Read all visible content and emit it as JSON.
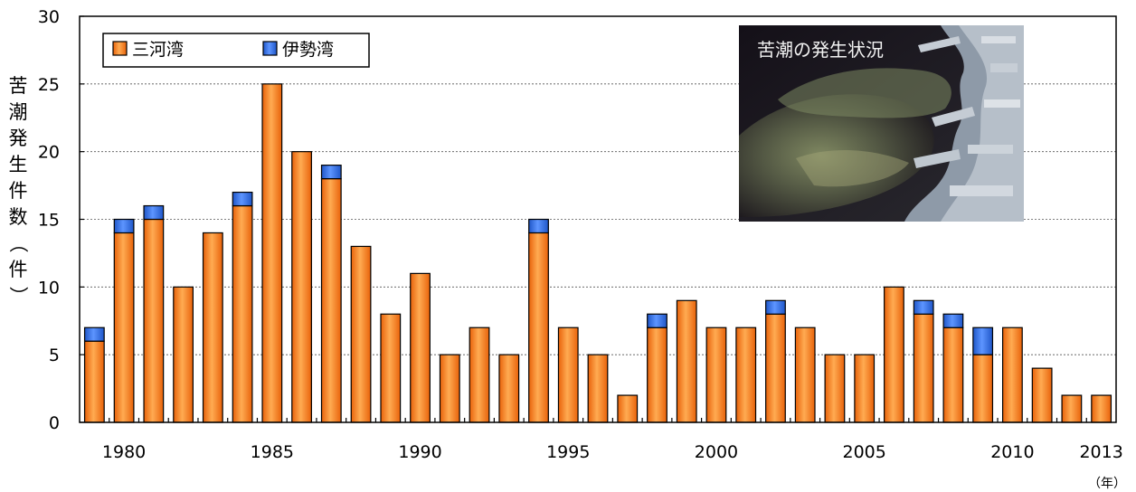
{
  "chart_data": {
    "type": "bar",
    "stacked": true,
    "x": [
      1979,
      1980,
      1981,
      1982,
      1983,
      1984,
      1985,
      1986,
      1987,
      1988,
      1989,
      1990,
      1991,
      1992,
      1993,
      1994,
      1995,
      1996,
      1997,
      1998,
      1999,
      2000,
      2001,
      2002,
      2003,
      2004,
      2005,
      2006,
      2007,
      2008,
      2009,
      2010,
      2011,
      2012,
      2013
    ],
    "x_tick_labels": [
      {
        "year": 1980,
        "label": "1980"
      },
      {
        "year": 1985,
        "label": "1985"
      },
      {
        "year": 1990,
        "label": "1990"
      },
      {
        "year": 1995,
        "label": "1995"
      },
      {
        "year": 2000,
        "label": "2000"
      },
      {
        "year": 2005,
        "label": "2005"
      },
      {
        "year": 2010,
        "label": "2010"
      },
      {
        "year": 2013,
        "label": "2013"
      }
    ],
    "series": [
      {
        "name": "三河湾",
        "color": "#f07d1e",
        "values": [
          6,
          14,
          15,
          10,
          14,
          16,
          25,
          20,
          18,
          13,
          8,
          11,
          5,
          7,
          5,
          14,
          7,
          5,
          2,
          7,
          9,
          7,
          7,
          8,
          7,
          5,
          5,
          10,
          8,
          7,
          5,
          7,
          4,
          2,
          2
        ]
      },
      {
        "name": "伊勢湾",
        "color": "#2f6fe0",
        "values": [
          1,
          1,
          1,
          0,
          0,
          1,
          0,
          0,
          1,
          0,
          0,
          0,
          0,
          0,
          0,
          1,
          0,
          0,
          0,
          1,
          0,
          0,
          0,
          1,
          0,
          0,
          0,
          0,
          1,
          1,
          2,
          0,
          0,
          0,
          0
        ]
      }
    ],
    "ylim": [
      0,
      30
    ],
    "y_ticks": [
      0,
      5,
      10,
      15,
      20,
      25,
      30
    ],
    "ylabel": "苦潮発生件数（件）",
    "x_unit": "（年）",
    "legend_position": "top-left",
    "grid": "horizontal-dotted"
  },
  "inset_photo": {
    "caption": "苦潮の発生状況"
  }
}
